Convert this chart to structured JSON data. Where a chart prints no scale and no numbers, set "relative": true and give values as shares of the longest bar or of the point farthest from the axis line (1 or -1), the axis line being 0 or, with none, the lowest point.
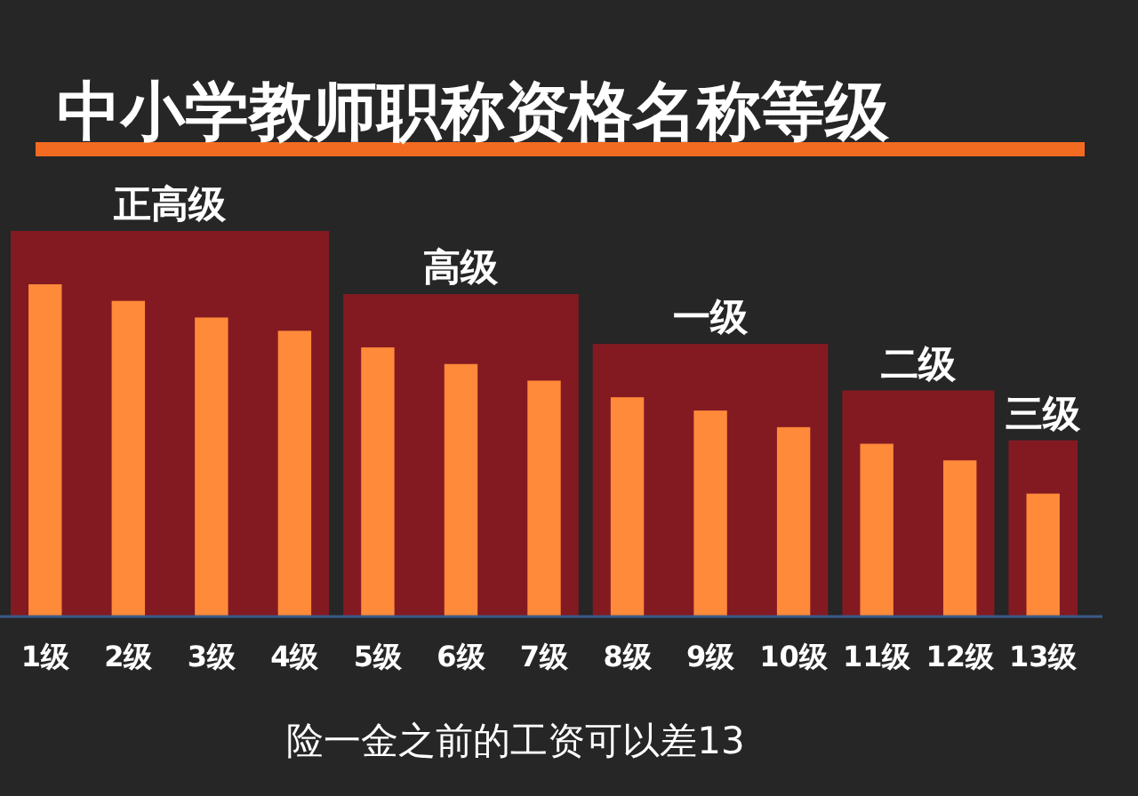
{
  "chart_data": {
    "type": "bar",
    "title": "中小学教师职称资格名称等级",
    "categories": [
      "1级",
      "2级",
      "3级",
      "4级",
      "5级",
      "6级",
      "7级",
      "8级",
      "9级",
      "10级",
      "11级",
      "12级",
      "13级"
    ],
    "values": [
      1,
      0.95,
      0.9,
      0.86,
      0.81,
      0.76,
      0.71,
      0.66,
      0.62,
      0.57,
      0.52,
      0.47,
      0.37
    ],
    "relative": true,
    "color": "#ff8a3a",
    "bands": [
      {
        "axis": "x",
        "from": "1级",
        "to": "4级",
        "label": "正高级",
        "color": "#8e1a22"
      },
      {
        "axis": "x",
        "from": "5级",
        "to": "7级",
        "label": "高级",
        "color": "#8e1a22"
      },
      {
        "axis": "x",
        "from": "8级",
        "to": "10级",
        "label": "一级",
        "color": "#8e1a22"
      },
      {
        "axis": "x",
        "from": "11级",
        "to": "12级",
        "label": "二级",
        "color": "#8e1a22"
      },
      {
        "axis": "x",
        "from": "13级",
        "to": "13级",
        "label": "三级",
        "color": "#8e1a22"
      }
    ],
    "annotations": [
      "险一金之前的工资可以差13"
    ]
  }
}
